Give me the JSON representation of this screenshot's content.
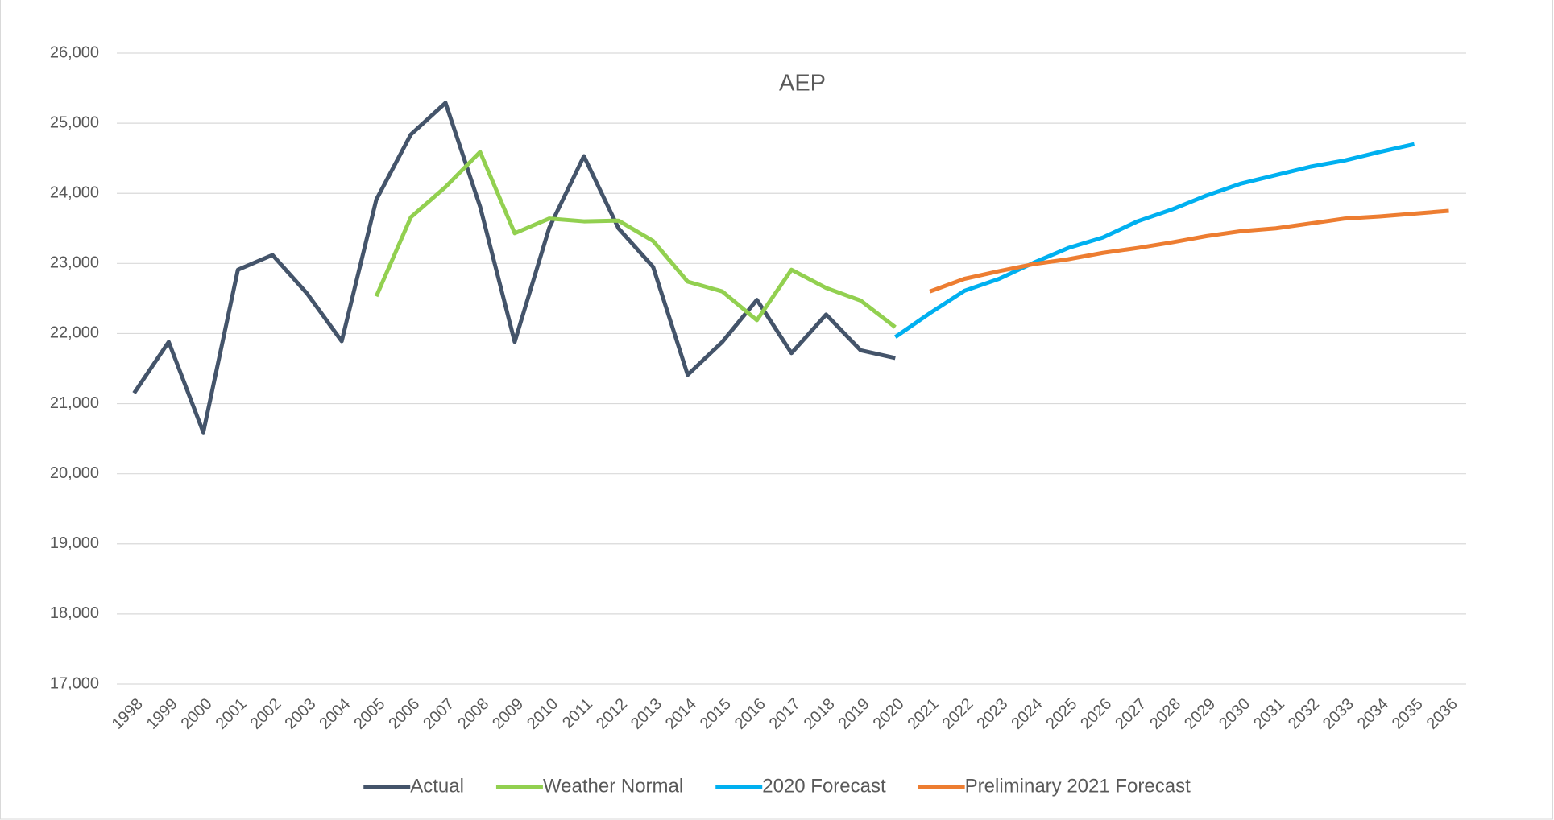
{
  "chart_data": {
    "type": "line",
    "title": "AEP",
    "categories": [
      "1998",
      "1999",
      "2000",
      "2001",
      "2002",
      "2003",
      "2004",
      "2005",
      "2006",
      "2007",
      "2008",
      "2009",
      "2010",
      "2011",
      "2012",
      "2013",
      "2014",
      "2015",
      "2016",
      "2017",
      "2018",
      "2019",
      "2020",
      "2021",
      "2022",
      "2023",
      "2024",
      "2025",
      "2026",
      "2027",
      "2028",
      "2029",
      "2030",
      "2031",
      "2032",
      "2033",
      "2034",
      "2035",
      "2036"
    ],
    "series": [
      {
        "name": "Actual",
        "color": "#44546a",
        "values": [
          21150,
          21880,
          20590,
          22910,
          23120,
          22570,
          21890,
          23910,
          24840,
          25290,
          23810,
          21880,
          23510,
          24530,
          23500,
          22950,
          21410,
          21880,
          22480,
          21720,
          22270,
          21760,
          21650,
          null,
          null,
          null,
          null,
          null,
          null,
          null,
          null,
          null,
          null,
          null,
          null,
          null,
          null,
          null,
          null
        ]
      },
      {
        "name": "Weather Normal",
        "color": "#92d050",
        "values": [
          null,
          null,
          null,
          null,
          null,
          null,
          null,
          22530,
          23660,
          24090,
          24590,
          23430,
          23640,
          23600,
          23610,
          23320,
          22740,
          22600,
          22190,
          22910,
          22650,
          22470,
          22090,
          null,
          null,
          null,
          null,
          null,
          null,
          null,
          null,
          null,
          null,
          null,
          null,
          null,
          null,
          null,
          null
        ]
      },
      {
        "name": "2020 Forecast",
        "color": "#00b0f0",
        "values": [
          null,
          null,
          null,
          null,
          null,
          null,
          null,
          null,
          null,
          null,
          null,
          null,
          null,
          null,
          null,
          null,
          null,
          null,
          null,
          null,
          null,
          null,
          21950,
          22290,
          22610,
          22780,
          23010,
          23220,
          23370,
          23600,
          23770,
          23970,
          24140,
          24260,
          24380,
          24470,
          24590,
          24700,
          null
        ]
      },
      {
        "name": "Preliminary 2021 Forecast",
        "color": "#ed7d31",
        "values": [
          null,
          null,
          null,
          null,
          null,
          null,
          null,
          null,
          null,
          null,
          null,
          null,
          null,
          null,
          null,
          null,
          null,
          null,
          null,
          null,
          null,
          null,
          null,
          22600,
          22780,
          22890,
          22990,
          23060,
          23150,
          23220,
          23300,
          23390,
          23460,
          23500,
          23570,
          23640,
          23670,
          23710,
          23750
        ]
      }
    ],
    "ylim": [
      17000,
      26000
    ],
    "yticks": [
      {
        "value": 17000,
        "label": "17,000"
      },
      {
        "value": 18000,
        "label": "18,000"
      },
      {
        "value": 19000,
        "label": "19,000"
      },
      {
        "value": 20000,
        "label": "20,000"
      },
      {
        "value": 21000,
        "label": "21,000"
      },
      {
        "value": 22000,
        "label": "22,000"
      },
      {
        "value": 23000,
        "label": "23,000"
      },
      {
        "value": 24000,
        "label": "24,000"
      },
      {
        "value": 25000,
        "label": "25,000"
      },
      {
        "value": 26000,
        "label": "26,000"
      }
    ],
    "grid": true,
    "legend": "bottom"
  }
}
